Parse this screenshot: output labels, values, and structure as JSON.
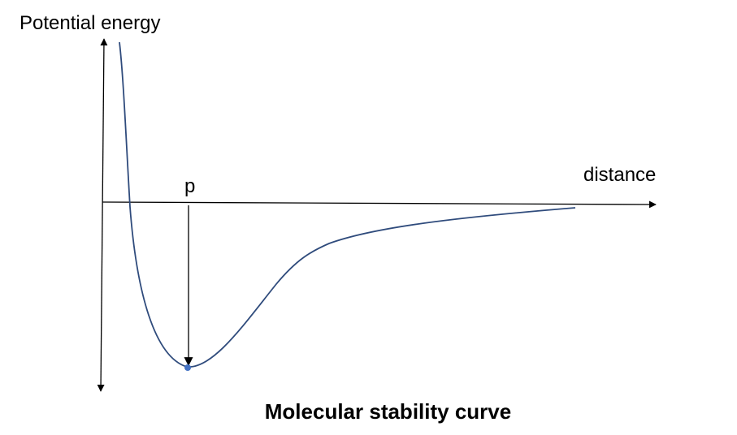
{
  "diagram": {
    "y_axis_label": "Potential energy",
    "x_axis_label": "distance",
    "point_label": "p",
    "caption": "Molecular stability curve",
    "colors": {
      "curve": "#2f4b7c",
      "point": "#4472c4",
      "axes": "#000000"
    }
  }
}
